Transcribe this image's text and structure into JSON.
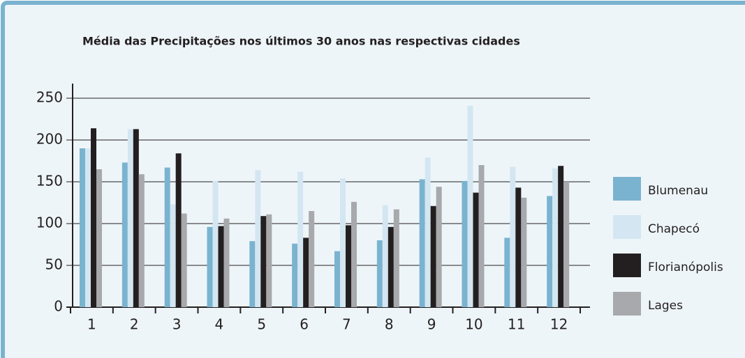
{
  "chart_data": {
    "type": "bar",
    "title": "Média das Precipitações nos últimos 30 anos nas respectivas cidades",
    "categories": [
      "1",
      "2",
      "3",
      "4",
      "5",
      "6",
      "7",
      "8",
      "9",
      "10",
      "11",
      "12"
    ],
    "series": [
      {
        "name": "Blumenau",
        "color": "#7ab3d0",
        "values": [
          190,
          173,
          167,
          96,
          79,
          76,
          67,
          80,
          153,
          151,
          83,
          133
        ]
      },
      {
        "name": "Chapecó",
        "color": "#d3e6f1",
        "values": [
          190,
          213,
          123,
          151,
          164,
          162,
          154,
          122,
          179,
          241,
          168,
          166
        ]
      },
      {
        "name": "Florianópolis",
        "color": "#231f20",
        "values": [
          214,
          213,
          184,
          97,
          109,
          83,
          98,
          96,
          121,
          137,
          143,
          169
        ]
      },
      {
        "name": "Lages",
        "color": "#a7a9ac",
        "values": [
          165,
          159,
          112,
          106,
          111,
          115,
          126,
          117,
          144,
          170,
          131,
          150
        ]
      }
    ],
    "ylim": [
      0,
      250
    ],
    "yticks": [
      0,
      50,
      100,
      150,
      200,
      250
    ],
    "grid": true,
    "legend": "right"
  }
}
